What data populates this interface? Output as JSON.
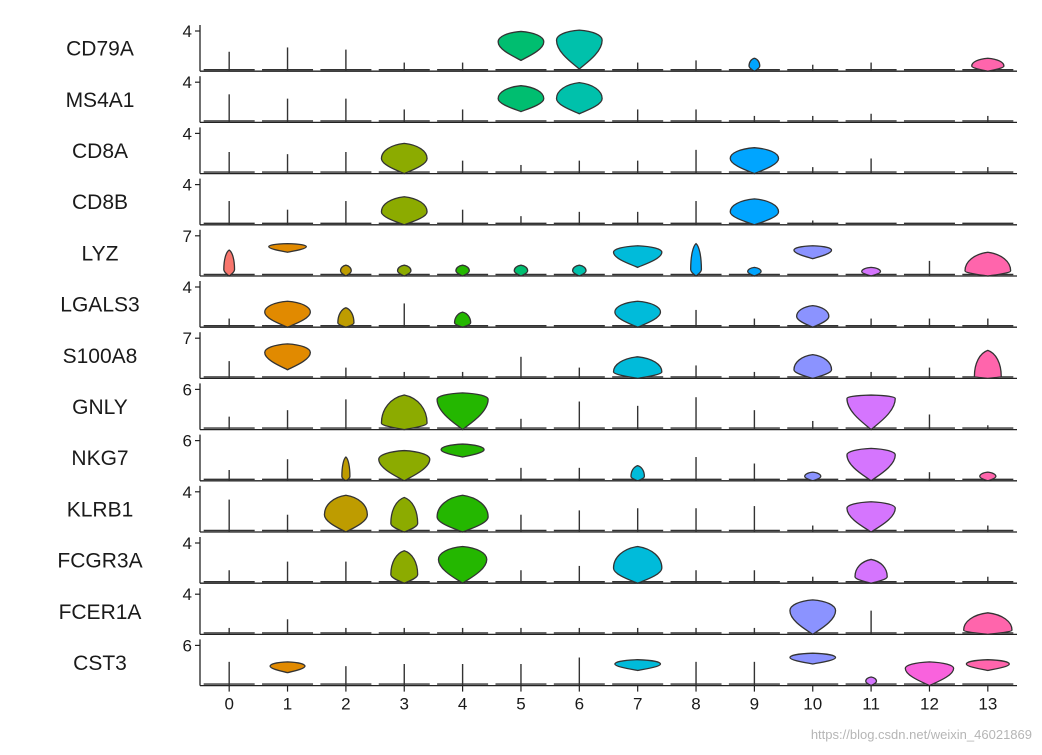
{
  "chart_data": {
    "type": "violin",
    "clusters": [
      "0",
      "1",
      "2",
      "3",
      "4",
      "5",
      "6",
      "7",
      "8",
      "9",
      "10",
      "11",
      "12",
      "13"
    ],
    "colors": [
      "#F8766D",
      "#E18A00",
      "#BE9C00",
      "#8CAB00",
      "#24B700",
      "#00BE70",
      "#00C1AB",
      "#00BBDA",
      "#00ACFC",
      "#00A5FF",
      "#8B93FF",
      "#D575FE",
      "#F962DD",
      "#FF65AC"
    ],
    "genes": [
      {
        "name": "CD79A",
        "ymax_label": "4",
        "shapes": [
          {
            "t": "line",
            "h": 0.45
          },
          {
            "t": "line",
            "h": 0.55
          },
          {
            "t": "line",
            "h": 0.5
          },
          {
            "t": "line",
            "h": 0.2
          },
          {
            "t": "line",
            "h": 0.2
          },
          {
            "t": "violin",
            "top": 0.92,
            "bottom": 0.25,
            "peak": 0.68,
            "w": 0.85
          },
          {
            "t": "violin",
            "top": 0.95,
            "bottom": 0.05,
            "peak": 0.72,
            "w": 0.85
          },
          {
            "t": "line",
            "h": 0.2
          },
          {
            "t": "line",
            "h": 0.25
          },
          {
            "t": "violin",
            "top": 0.3,
            "bottom": 0.0,
            "peak": 0.12,
            "w": 0.2
          },
          {
            "t": "line",
            "h": 0.15
          },
          {
            "t": "line",
            "h": 0.2
          },
          {
            "t": "line",
            "h": 0.0
          },
          {
            "t": "violin",
            "top": 0.3,
            "bottom": 0.0,
            "peak": 0.12,
            "w": 0.6
          }
        ]
      },
      {
        "name": "MS4A1",
        "ymax_label": "4",
        "shapes": [
          {
            "t": "line",
            "h": 0.65
          },
          {
            "t": "line",
            "h": 0.55
          },
          {
            "t": "line",
            "h": 0.55
          },
          {
            "t": "line",
            "h": 0.3
          },
          {
            "t": "line",
            "h": 0.3
          },
          {
            "t": "violin",
            "top": 0.85,
            "bottom": 0.25,
            "peak": 0.55,
            "w": 0.85
          },
          {
            "t": "violin",
            "top": 0.92,
            "bottom": 0.2,
            "peak": 0.55,
            "w": 0.85
          },
          {
            "t": "line",
            "h": 0.3
          },
          {
            "t": "line",
            "h": 0.3
          },
          {
            "t": "line",
            "h": 0.15
          },
          {
            "t": "line",
            "h": 0.15
          },
          {
            "t": "line",
            "h": 0.2
          },
          {
            "t": "line",
            "h": 0.0
          },
          {
            "t": "line",
            "h": 0.15
          }
        ]
      },
      {
        "name": "CD8A",
        "ymax_label": "4",
        "shapes": [
          {
            "t": "line",
            "h": 0.5
          },
          {
            "t": "line",
            "h": 0.45
          },
          {
            "t": "line",
            "h": 0.5
          },
          {
            "t": "violin",
            "top": 0.7,
            "bottom": 0.0,
            "peak": 0.35,
            "w": 0.85
          },
          {
            "t": "line",
            "h": 0.3
          },
          {
            "t": "line",
            "h": 0.2
          },
          {
            "t": "line",
            "h": 0.3
          },
          {
            "t": "line",
            "h": 0.3
          },
          {
            "t": "line",
            "h": 0.55
          },
          {
            "t": "violin",
            "top": 0.6,
            "bottom": 0.0,
            "peak": 0.35,
            "w": 0.9
          },
          {
            "t": "line",
            "h": 0.15
          },
          {
            "t": "line",
            "h": 0.35
          },
          {
            "t": "line",
            "h": 0.0
          },
          {
            "t": "line",
            "h": 0.15
          }
        ]
      },
      {
        "name": "CD8B",
        "ymax_label": "4",
        "shapes": [
          {
            "t": "line",
            "h": 0.55
          },
          {
            "t": "line",
            "h": 0.35
          },
          {
            "t": "line",
            "h": 0.55
          },
          {
            "t": "violin",
            "top": 0.65,
            "bottom": 0.0,
            "peak": 0.3,
            "w": 0.85
          },
          {
            "t": "line",
            "h": 0.35
          },
          {
            "t": "line",
            "h": 0.2
          },
          {
            "t": "line",
            "h": 0.3
          },
          {
            "t": "line",
            "h": 0.3
          },
          {
            "t": "line",
            "h": 0.55
          },
          {
            "t": "violin",
            "top": 0.6,
            "bottom": 0.0,
            "peak": 0.3,
            "w": 0.9
          },
          {
            "t": "line",
            "h": 0.1
          },
          {
            "t": "line",
            "h": 0.0
          },
          {
            "t": "line",
            "h": 0.0
          },
          {
            "t": "line",
            "h": 0.0
          }
        ]
      },
      {
        "name": "LYZ",
        "ymax_label": "7",
        "shapes": [
          {
            "t": "violin",
            "top": 0.6,
            "bottom": 0.0,
            "peak": 0.15,
            "w": 0.2
          },
          {
            "t": "violin",
            "top": 0.75,
            "bottom": 0.55,
            "peak": 0.68,
            "w": 0.7
          },
          {
            "t": "violin",
            "top": 0.25,
            "bottom": 0.0,
            "peak": 0.12,
            "w": 0.2
          },
          {
            "t": "violin",
            "top": 0.25,
            "bottom": 0.0,
            "peak": 0.12,
            "w": 0.25
          },
          {
            "t": "violin",
            "top": 0.25,
            "bottom": 0.0,
            "peak": 0.12,
            "w": 0.25
          },
          {
            "t": "violin",
            "top": 0.25,
            "bottom": 0.0,
            "peak": 0.12,
            "w": 0.25
          },
          {
            "t": "violin",
            "top": 0.25,
            "bottom": 0.0,
            "peak": 0.12,
            "w": 0.25
          },
          {
            "t": "violin",
            "top": 0.7,
            "bottom": 0.2,
            "peak": 0.55,
            "w": 0.9
          },
          {
            "t": "violin",
            "top": 0.75,
            "bottom": 0.0,
            "peak": 0.15,
            "w": 0.2
          },
          {
            "t": "violin",
            "top": 0.2,
            "bottom": 0.0,
            "peak": 0.1,
            "w": 0.25
          },
          {
            "t": "violin",
            "top": 0.7,
            "bottom": 0.4,
            "peak": 0.6,
            "w": 0.7
          },
          {
            "t": "violin",
            "top": 0.2,
            "bottom": 0.0,
            "peak": 0.1,
            "w": 0.35
          },
          {
            "t": "line",
            "h": 0.35
          },
          {
            "t": "violin",
            "top": 0.55,
            "bottom": 0.0,
            "peak": 0.12,
            "w": 0.85
          }
        ]
      },
      {
        "name": "LGALS3",
        "ymax_label": "4",
        "shapes": [
          {
            "t": "line",
            "h": 0.2
          },
          {
            "t": "violin",
            "top": 0.6,
            "bottom": 0.0,
            "peak": 0.35,
            "w": 0.85
          },
          {
            "t": "violin",
            "top": 0.45,
            "bottom": 0.0,
            "peak": 0.1,
            "w": 0.3
          },
          {
            "t": "line",
            "h": 0.55
          },
          {
            "t": "violin",
            "top": 0.35,
            "bottom": 0.0,
            "peak": 0.1,
            "w": 0.3
          },
          {
            "t": "line",
            "h": 0.0
          },
          {
            "t": "line",
            "h": 0.0
          },
          {
            "t": "violin",
            "top": 0.6,
            "bottom": 0.0,
            "peak": 0.35,
            "w": 0.85
          },
          {
            "t": "line",
            "h": 0.4
          },
          {
            "t": "line",
            "h": 0.2
          },
          {
            "t": "violin",
            "top": 0.5,
            "bottom": 0.0,
            "peak": 0.25,
            "w": 0.6
          },
          {
            "t": "line",
            "h": 0.2
          },
          {
            "t": "line",
            "h": 0.2
          },
          {
            "t": "line",
            "h": 0.2
          }
        ]
      },
      {
        "name": "S100A8",
        "ymax_label": "7",
        "shapes": [
          {
            "t": "line",
            "h": 0.4
          },
          {
            "t": "violin",
            "top": 0.8,
            "bottom": 0.2,
            "peak": 0.6,
            "w": 0.85
          },
          {
            "t": "line",
            "h": 0.25
          },
          {
            "t": "line",
            "h": 0.15
          },
          {
            "t": "line",
            "h": 0.15
          },
          {
            "t": "line",
            "h": 0.5
          },
          {
            "t": "line",
            "h": 0.25
          },
          {
            "t": "violin",
            "top": 0.5,
            "bottom": 0.0,
            "peak": 0.15,
            "w": 0.9
          },
          {
            "t": "line",
            "h": 0.3
          },
          {
            "t": "line",
            "h": 0.15
          },
          {
            "t": "violin",
            "top": 0.55,
            "bottom": 0.0,
            "peak": 0.2,
            "w": 0.7
          },
          {
            "t": "line",
            "h": 0.15
          },
          {
            "t": "line",
            "h": 0.25
          },
          {
            "t": "violin",
            "top": 0.65,
            "bottom": 0.0,
            "peak": 0.05,
            "w": 0.5
          }
        ]
      },
      {
        "name": "GNLY",
        "ymax_label": "6",
        "shapes": [
          {
            "t": "line",
            "h": 0.3
          },
          {
            "t": "line",
            "h": 0.45
          },
          {
            "t": "line",
            "h": 0.7
          },
          {
            "t": "violin",
            "top": 0.8,
            "bottom": 0.0,
            "peak": 0.15,
            "w": 0.85
          },
          {
            "t": "violin",
            "top": 0.85,
            "bottom": 0.0,
            "peak": 0.7,
            "w": 0.95
          },
          {
            "t": "line",
            "h": 0.25
          },
          {
            "t": "line",
            "h": 0.65
          },
          {
            "t": "line",
            "h": 0.55
          },
          {
            "t": "line",
            "h": 0.75
          },
          {
            "t": "line",
            "h": 0.45
          },
          {
            "t": "line",
            "h": 0.2
          },
          {
            "t": "violin",
            "top": 0.8,
            "bottom": 0.0,
            "peak": 0.72,
            "w": 0.9
          },
          {
            "t": "line",
            "h": 0.35
          },
          {
            "t": "line",
            "h": 0.1
          }
        ]
      },
      {
        "name": "NKG7",
        "ymax_label": "6",
        "shapes": [
          {
            "t": "line",
            "h": 0.25
          },
          {
            "t": "line",
            "h": 0.5
          },
          {
            "t": "violin",
            "top": 0.55,
            "bottom": 0.0,
            "peak": 0.1,
            "w": 0.15
          },
          {
            "t": "violin",
            "top": 0.7,
            "bottom": 0.0,
            "peak": 0.5,
            "w": 0.95
          },
          {
            "t": "violin",
            "top": 0.85,
            "bottom": 0.55,
            "peak": 0.72,
            "w": 0.8
          },
          {
            "t": "line",
            "h": 0.3
          },
          {
            "t": "line",
            "h": 0.3
          },
          {
            "t": "violin",
            "top": 0.35,
            "bottom": 0.0,
            "peak": 0.1,
            "w": 0.25
          },
          {
            "t": "line",
            "h": 0.55
          },
          {
            "t": "line",
            "h": 0.4
          },
          {
            "t": "violin",
            "top": 0.2,
            "bottom": 0.0,
            "peak": 0.1,
            "w": 0.3
          },
          {
            "t": "violin",
            "top": 0.75,
            "bottom": 0.0,
            "peak": 0.6,
            "w": 0.9
          },
          {
            "t": "line",
            "h": 0.2
          },
          {
            "t": "violin",
            "top": 0.2,
            "bottom": 0.0,
            "peak": 0.1,
            "w": 0.3
          }
        ]
      },
      {
        "name": "KLRB1",
        "ymax_label": "4",
        "shapes": [
          {
            "t": "line",
            "h": 0.75
          },
          {
            "t": "line",
            "h": 0.4
          },
          {
            "t": "violin",
            "top": 0.85,
            "bottom": 0.0,
            "peak": 0.4,
            "w": 0.8
          },
          {
            "t": "violin",
            "top": 0.8,
            "bottom": 0.0,
            "peak": 0.2,
            "w": 0.5
          },
          {
            "t": "violin",
            "top": 0.85,
            "bottom": 0.0,
            "peak": 0.35,
            "w": 0.95
          },
          {
            "t": "line",
            "h": 0.4
          },
          {
            "t": "line",
            "h": 0.5
          },
          {
            "t": "line",
            "h": 0.55
          },
          {
            "t": "line",
            "h": 0.55
          },
          {
            "t": "line",
            "h": 0.6
          },
          {
            "t": "line",
            "h": 0.15
          },
          {
            "t": "violin",
            "top": 0.7,
            "bottom": 0.0,
            "peak": 0.55,
            "w": 0.9
          },
          {
            "t": "line",
            "h": 0.0
          },
          {
            "t": "line",
            "h": 0.15
          }
        ]
      },
      {
        "name": "FCGR3A",
        "ymax_label": "4",
        "shapes": [
          {
            "t": "line",
            "h": 0.3
          },
          {
            "t": "line",
            "h": 0.5
          },
          {
            "t": "line",
            "h": 0.5
          },
          {
            "t": "violin",
            "top": 0.75,
            "bottom": 0.0,
            "peak": 0.2,
            "w": 0.5
          },
          {
            "t": "violin",
            "top": 0.85,
            "bottom": 0.0,
            "peak": 0.55,
            "w": 0.9
          },
          {
            "t": "line",
            "h": 0.3
          },
          {
            "t": "line",
            "h": 0.4
          },
          {
            "t": "violin",
            "top": 0.85,
            "bottom": 0.0,
            "peak": 0.35,
            "w": 0.9
          },
          {
            "t": "line",
            "h": 0.3
          },
          {
            "t": "line",
            "h": 0.3
          },
          {
            "t": "line",
            "h": 0.15
          },
          {
            "t": "violin",
            "top": 0.55,
            "bottom": 0.0,
            "peak": 0.15,
            "w": 0.6
          },
          {
            "t": "line",
            "h": 0.0
          },
          {
            "t": "line",
            "h": 0.15
          }
        ]
      },
      {
        "name": "FCER1A",
        "ymax_label": "4",
        "shapes": [
          {
            "t": "line",
            "h": 0.15
          },
          {
            "t": "line",
            "h": 0.35
          },
          {
            "t": "line",
            "h": 0.15
          },
          {
            "t": "line",
            "h": 0.15
          },
          {
            "t": "line",
            "h": 0.15
          },
          {
            "t": "line",
            "h": 0.15
          },
          {
            "t": "line",
            "h": 0.15
          },
          {
            "t": "line",
            "h": 0.15
          },
          {
            "t": "line",
            "h": 0.15
          },
          {
            "t": "line",
            "h": 0.15
          },
          {
            "t": "violin",
            "top": 0.8,
            "bottom": 0.0,
            "peak": 0.55,
            "w": 0.85
          },
          {
            "t": "line",
            "h": 0.55
          },
          {
            "t": "line",
            "h": 0.0
          },
          {
            "t": "violin",
            "top": 0.5,
            "bottom": 0.0,
            "peak": 0.1,
            "w": 0.9
          }
        ]
      },
      {
        "name": "CST3",
        "ymax_label": "6",
        "shapes": [
          {
            "t": "line",
            "h": 0.55
          },
          {
            "t": "violin",
            "top": 0.55,
            "bottom": 0.3,
            "peak": 0.45,
            "w": 0.65
          },
          {
            "t": "line",
            "h": 0.45
          },
          {
            "t": "line",
            "h": 0.5
          },
          {
            "t": "line",
            "h": 0.5
          },
          {
            "t": "line",
            "h": 0.5
          },
          {
            "t": "line",
            "h": 0.65
          },
          {
            "t": "violin",
            "top": 0.6,
            "bottom": 0.35,
            "peak": 0.5,
            "w": 0.85
          },
          {
            "t": "line",
            "h": 0.55
          },
          {
            "t": "line",
            "h": 0.55
          },
          {
            "t": "violin",
            "top": 0.75,
            "bottom": 0.5,
            "peak": 0.65,
            "w": 0.85
          },
          {
            "t": "violin",
            "top": 0.2,
            "bottom": 0.0,
            "peak": 0.1,
            "w": 0.2
          },
          {
            "t": "violin",
            "top": 0.55,
            "bottom": 0.0,
            "peak": 0.4,
            "w": 0.9
          },
          {
            "t": "violin",
            "top": 0.6,
            "bottom": 0.35,
            "peak": 0.5,
            "w": 0.8
          }
        ]
      }
    ]
  },
  "watermark": "https://blog.csdn.net/weixin_46021869"
}
